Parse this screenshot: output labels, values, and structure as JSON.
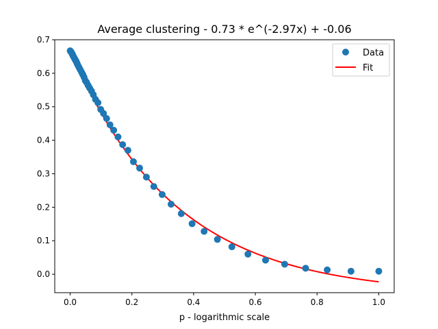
{
  "chart_data": {
    "type": "scatter",
    "title": "Average clustering - 0.73 * e^(-2.97x) + -0.06",
    "xlabel": "p - logarithmic scale",
    "ylabel": "",
    "xlim": [
      -0.05,
      1.05
    ],
    "ylim": [
      -0.055,
      0.7
    ],
    "x_ticks": [
      0.0,
      0.2,
      0.4,
      0.6,
      0.8,
      1.0
    ],
    "x_tick_labels": [
      "0.0",
      "0.2",
      "0.4",
      "0.6",
      "0.8",
      "1.0"
    ],
    "y_ticks": [
      0.0,
      0.1,
      0.2,
      0.3,
      0.4,
      0.5,
      0.6,
      0.7
    ],
    "y_tick_labels": [
      "0.0",
      "0.1",
      "0.2",
      "0.3",
      "0.4",
      "0.5",
      "0.6",
      "0.7"
    ],
    "grid": false,
    "legend_position": "top-right",
    "series": [
      {
        "name": "Data",
        "kind": "scatter",
        "color": "#1f77b4",
        "points": [
          [
            0.0,
            0.667
          ],
          [
            0.002,
            0.665
          ],
          [
            0.004,
            0.662
          ],
          [
            0.006,
            0.659
          ],
          [
            0.008,
            0.655
          ],
          [
            0.01,
            0.651
          ],
          [
            0.013,
            0.646
          ],
          [
            0.016,
            0.641
          ],
          [
            0.019,
            0.636
          ],
          [
            0.022,
            0.63
          ],
          [
            0.025,
            0.624
          ],
          [
            0.029,
            0.617
          ],
          [
            0.033,
            0.61
          ],
          [
            0.037,
            0.603
          ],
          [
            0.041,
            0.596
          ],
          [
            0.045,
            0.588
          ],
          [
            0.049,
            0.578
          ],
          [
            0.053,
            0.573
          ],
          [
            0.058,
            0.564
          ],
          [
            0.063,
            0.556
          ],
          [
            0.069,
            0.547
          ],
          [
            0.075,
            0.536
          ],
          [
            0.082,
            0.522
          ],
          [
            0.09,
            0.512
          ],
          [
            0.099,
            0.492
          ],
          [
            0.108,
            0.48
          ],
          [
            0.118,
            0.465
          ],
          [
            0.129,
            0.446
          ],
          [
            0.141,
            0.43
          ],
          [
            0.155,
            0.41
          ],
          [
            0.17,
            0.387
          ],
          [
            0.187,
            0.37
          ],
          [
            0.205,
            0.336
          ],
          [
            0.225,
            0.317
          ],
          [
            0.247,
            0.29
          ],
          [
            0.271,
            0.262
          ],
          [
            0.298,
            0.238
          ],
          [
            0.327,
            0.209
          ],
          [
            0.36,
            0.181
          ],
          [
            0.395,
            0.151
          ],
          [
            0.434,
            0.128
          ],
          [
            0.477,
            0.104
          ],
          [
            0.524,
            0.082
          ],
          [
            0.576,
            0.06
          ],
          [
            0.633,
            0.042
          ],
          [
            0.695,
            0.03
          ],
          [
            0.763,
            0.018
          ],
          [
            0.833,
            0.013
          ],
          [
            0.91,
            0.009
          ],
          [
            1.0,
            0.009
          ]
        ]
      },
      {
        "name": "Fit",
        "kind": "line",
        "color": "#ff0000",
        "equation": {
          "a": 0.73,
          "b": -2.97,
          "c": -0.06
        },
        "x_range": [
          0.0,
          1.0
        ]
      }
    ]
  }
}
